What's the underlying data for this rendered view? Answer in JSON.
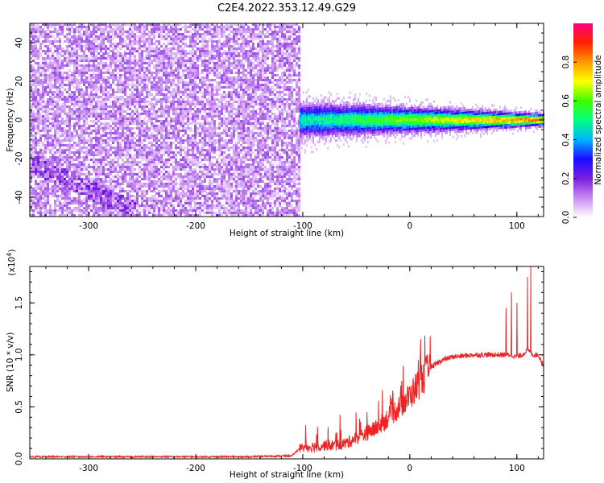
{
  "title": "C2E4.2022.353.12.49.G29",
  "chart_data": [
    {
      "type": "heatmap",
      "xlabel": "Height of straight line (km)",
      "ylabel": "Frequency (Hz)",
      "xlim": [
        -355,
        125
      ],
      "ylim": [
        -50,
        50
      ],
      "xticks": [
        -300,
        -200,
        -100,
        0,
        100
      ],
      "yticks": [
        -40,
        -20,
        0,
        20,
        40
      ],
      "xtick_labels": [
        "-300",
        "-200",
        "-100",
        "0",
        "100"
      ],
      "ytick_labels": [
        "-40",
        "-20",
        "0",
        "20",
        "40"
      ],
      "colorbar": {
        "label": "Normalized spectral amplitude",
        "range": [
          0,
          1
        ],
        "ticks": [
          0.0,
          0.2,
          0.4,
          0.6,
          0.8
        ],
        "tick_labels": [
          "0.0",
          "0.2",
          "0.4",
          "0.6",
          "0.8"
        ],
        "colormap": [
          "#ffffff",
          "#c78cf2",
          "#7a1fe0",
          "#1a0aff",
          "#00b4ff",
          "#00ff80",
          "#3cff00",
          "#ffff00",
          "#ff9900",
          "#ff2000",
          "#ff007f"
        ]
      },
      "regions": [
        {
          "name": "noise",
          "x": [
            -355,
            -103
          ],
          "freq_range": [
            -50,
            50
          ],
          "amplitude": 0.1
        },
        {
          "name": "signal",
          "x": [
            -103,
            125
          ],
          "center_freq": 0,
          "amplitude_start": 0.45,
          "amplitude_end": 0.85
        }
      ]
    },
    {
      "type": "line",
      "xlabel": "Height of straight line (km)",
      "ylabel": "SNR (10 * v/v)",
      "y_multiplier": "(x10",
      "y_multiplier_exp": "4",
      "y_multiplier_close": ")",
      "xlim": [
        -355,
        125
      ],
      "ylim": [
        0,
        1.85
      ],
      "xticks": [
        -300,
        -200,
        -100,
        0,
        100
      ],
      "yticks": [
        0,
        0.5,
        1.0,
        1.5
      ],
      "xtick_labels": [
        "-300",
        "-200",
        "-100",
        "0",
        "100"
      ],
      "ytick_labels": [
        "0.0",
        "0.5",
        "1.0",
        "1.5"
      ],
      "color": "#ee2222",
      "series": [
        {
          "x": [
            -355,
            -300,
            -250,
            -200,
            -150,
            -110,
            -103,
            -90,
            -80,
            -70,
            -60,
            -50,
            -40,
            -30,
            -20,
            -10,
            0,
            10,
            20,
            30,
            40,
            50,
            60,
            70,
            80,
            90,
            95,
            100,
            105,
            110,
            115,
            120,
            125
          ],
          "values": [
            0.02,
            0.02,
            0.02,
            0.02,
            0.02,
            0.03,
            0.1,
            0.12,
            0.13,
            0.13,
            0.15,
            0.2,
            0.25,
            0.3,
            0.4,
            0.5,
            0.6,
            0.75,
            0.88,
            0.95,
            0.98,
            0.99,
            1.0,
            1.0,
            1.0,
            1.0,
            1.0,
            0.98,
            1.0,
            1.05,
            1.0,
            1.0,
            0.9
          ]
        }
      ],
      "spikes": [
        {
          "x": -40,
          "value": 0.45
        },
        {
          "x": 10,
          "value": 1.15
        },
        {
          "x": 90,
          "value": 1.45
        },
        {
          "x": 95,
          "value": 1.6
        },
        {
          "x": 100,
          "value": 1.5
        },
        {
          "x": 110,
          "value": 1.75
        },
        {
          "x": 113,
          "value": 1.85
        }
      ]
    }
  ]
}
